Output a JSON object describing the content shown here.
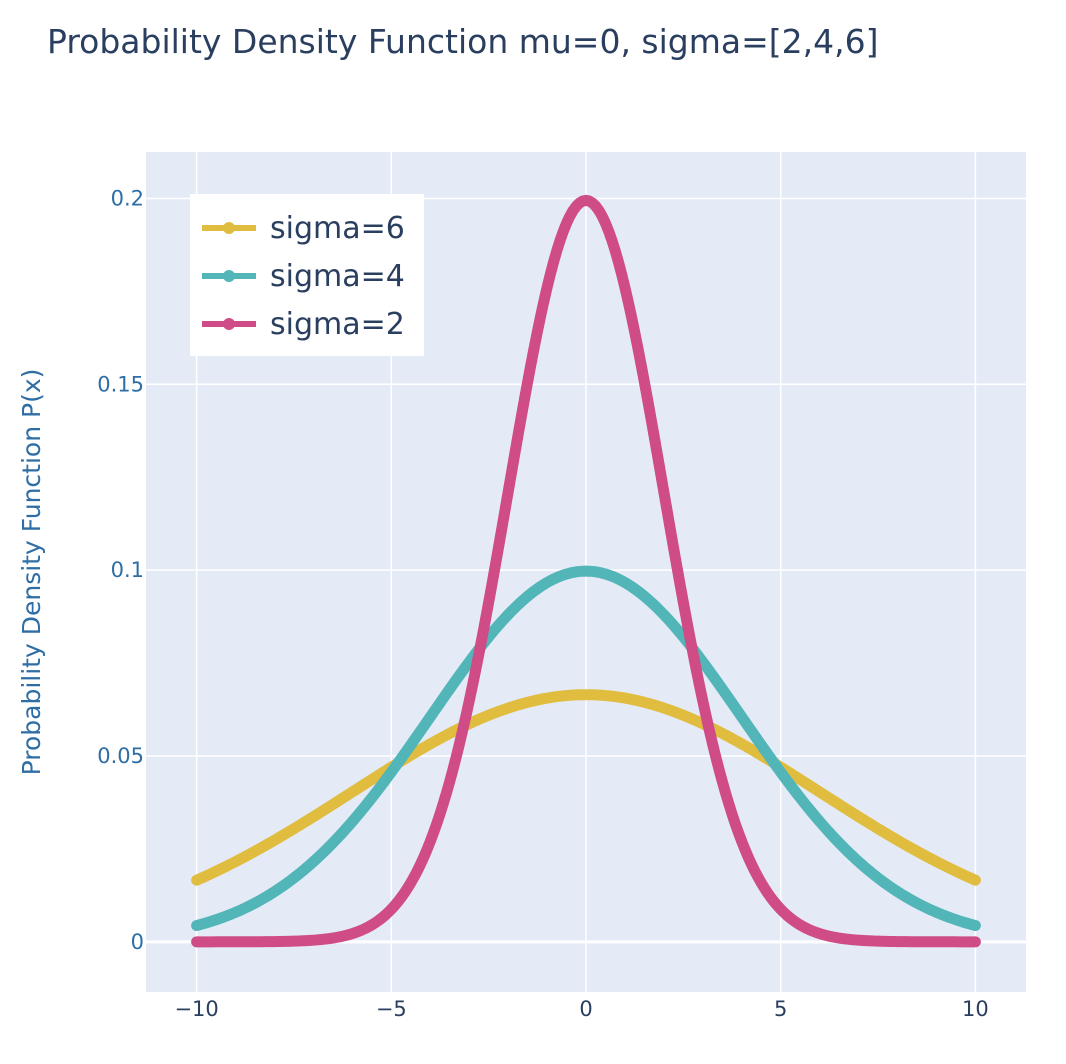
{
  "chart_data": {
    "type": "line",
    "title": "Probability Density Function mu=0, sigma=[2,4,6]",
    "xlabel": "",
    "ylabel": "Probability Density Function P(x)",
    "xlim": [
      -11.3,
      11.3
    ],
    "ylim": [
      -0.0135,
      0.2125
    ],
    "x_ticks": [
      -10,
      -5,
      0,
      5,
      10
    ],
    "x_tick_labels": [
      "−10",
      "−5",
      "0",
      "5",
      "10"
    ],
    "y_ticks": [
      0,
      0.05,
      0.1,
      0.15,
      0.2
    ],
    "y_tick_labels": [
      "0",
      "0.05",
      "0.1",
      "0.15",
      "0.2"
    ],
    "x_range": [
      -10,
      10
    ],
    "grid": true,
    "legend_position": "top-left",
    "series": [
      {
        "name": "sigma=6",
        "mu": 0,
        "sigma": 6,
        "color": "#e0bc3f",
        "x": [
          -10,
          -8,
          -6,
          -4,
          -2,
          0,
          2,
          4,
          6,
          8,
          10
        ],
        "values": [
          0.0166,
          0.0273,
          0.0403,
          0.0532,
          0.0629,
          0.0665,
          0.0629,
          0.0532,
          0.0403,
          0.0273,
          0.0166
        ]
      },
      {
        "name": "sigma=4",
        "mu": 0,
        "sigma": 4,
        "color": "#52b5b8",
        "x": [
          -10,
          -8,
          -6,
          -4,
          -2,
          0,
          2,
          4,
          6,
          8,
          10
        ],
        "values": [
          0.0044,
          0.0135,
          0.0324,
          0.0605,
          0.088,
          0.0997,
          0.088,
          0.0605,
          0.0324,
          0.0135,
          0.0044
        ]
      },
      {
        "name": "sigma=2",
        "mu": 0,
        "sigma": 2,
        "color": "#cf4c86",
        "x": [
          -10,
          -8,
          -6,
          -4,
          -2,
          0,
          2,
          4,
          6,
          8,
          10
        ],
        "values": [
          0.0,
          0.0001,
          0.0022,
          0.027,
          0.121,
          0.1995,
          0.121,
          0.027,
          0.0022,
          0.0001,
          0.0
        ]
      }
    ],
    "legend_order": [
      "sigma=6",
      "sigma=4",
      "sigma=2"
    ],
    "colors": {
      "plot_bg": "#e5ebf6",
      "grid": "#ffffff",
      "title": "#2a3f5f",
      "y_axis_text": "#2f6ea5",
      "x_axis_text": "#2a3f5f"
    }
  }
}
